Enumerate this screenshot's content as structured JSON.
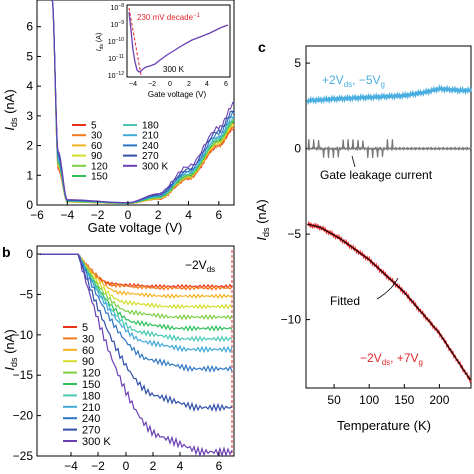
{
  "panels": {
    "a": {
      "label": "",
      "xlabel": "Gate voltage (V)",
      "ylabel_main": "I",
      "ylabel_sub": "ds",
      "ylabel_unit": " (nA)",
      "xlim": [
        -6,
        7
      ],
      "ylim": [
        0,
        6.9
      ],
      "xticks": [
        -6,
        -4,
        -2,
        0,
        2,
        4,
        6
      ],
      "yticks": [
        0,
        1,
        2,
        3,
        4,
        5,
        6
      ],
      "legend": [
        {
          "label": "5",
          "color": "#e8331b"
        },
        {
          "label": "30",
          "color": "#f07a1d"
        },
        {
          "label": "60",
          "color": "#f5b324"
        },
        {
          "label": "90",
          "color": "#d5dd28"
        },
        {
          "label": "120",
          "color": "#7fcf45"
        },
        {
          "label": "150",
          "color": "#2fbf5b"
        },
        {
          "label": "180",
          "color": "#49c9b4"
        },
        {
          "label": "210",
          "color": "#41a9d8"
        },
        {
          "label": "240",
          "color": "#2f77c4"
        },
        {
          "label": "270",
          "color": "#2f4fa8"
        },
        {
          "label": "300 K",
          "color": "#6a3fb4"
        }
      ]
    },
    "inset": {
      "ylabel_main": "I",
      "ylabel_sub": "ds",
      "ylabel_unit": " (A)",
      "xlabel": "Gate voltage (V)",
      "annotation": "230 mV decade",
      "annotation_exp": "−1",
      "temp": "300 K",
      "xticks": [
        "−4",
        "−2",
        "0",
        "2",
        "4",
        "6"
      ],
      "yticks": [
        {
          "base": "10",
          "exp": "−8"
        },
        {
          "base": "10",
          "exp": "−9"
        },
        {
          "base": "10",
          "exp": "−10"
        },
        {
          "base": "10",
          "exp": "−11"
        },
        {
          "base": "10",
          "exp": "−12"
        }
      ]
    },
    "b": {
      "label": "b",
      "annotation_main": "−2V",
      "annotation_sub": "ds",
      "ylabel_main": "I",
      "ylabel_sub": "ds",
      "ylabel_unit": " (nA)",
      "xlim": [
        -6,
        7
      ],
      "ylim": [
        -25,
        1
      ],
      "yticks": [
        0,
        -5,
        -10,
        -15,
        -20,
        -25
      ],
      "xticks_partial": [
        "-4",
        "-2",
        "0",
        "2",
        "4",
        "6"
      ],
      "legend": [
        {
          "label": "5",
          "color": "#e8331b"
        },
        {
          "label": "30",
          "color": "#f07a1d"
        },
        {
          "label": "60",
          "color": "#f5b324"
        },
        {
          "label": "90",
          "color": "#d5dd28"
        },
        {
          "label": "120",
          "color": "#7fcf45"
        },
        {
          "label": "150",
          "color": "#2fbf5b"
        },
        {
          "label": "180",
          "color": "#49c9b4"
        },
        {
          "label": "210",
          "color": "#41a9d8"
        },
        {
          "label": "240",
          "color": "#2f77c4"
        },
        {
          "label": "270",
          "color": "#2f4fa8"
        },
        {
          "label": "300 K",
          "color": "#6a3fb4"
        }
      ]
    },
    "c": {
      "label": "c",
      "xlabel": "Temperature (K)",
      "ylabel_main": "I",
      "ylabel_sub": "ds",
      "ylabel_unit": " (nA)",
      "xticks": [
        50,
        100,
        150,
        200
      ],
      "yticks": [
        5,
        0,
        -5,
        -10
      ],
      "xlim": [
        10,
        245
      ],
      "ylim": [
        -14,
        6
      ],
      "top_label": "+2V",
      "top_label_sub": "ds",
      "top_label_mid": ", −5V",
      "top_label_sub2": "g",
      "gate_label": "Gate leakage current",
      "fitted_label": "Fitted",
      "bottom_label": "−2V",
      "bottom_label_sub": "ds",
      "bottom_label_mid": ", +7V",
      "bottom_label_sub2": "g",
      "colors": {
        "top": "#4aaee0",
        "gate": "#777777",
        "bottom": "#e0262b",
        "fit": "#000000"
      }
    }
  },
  "chart_data": [
    {
      "panel": "a",
      "type": "line",
      "title": "",
      "xlabel": "Gate voltage (V)",
      "ylabel": "Ids (nA)",
      "xlim": [
        -6,
        7
      ],
      "ylim": [
        0,
        6.9
      ],
      "series_note": "11 temperature curves, each: steep drop for Vg < -4.5 V, near zero to ~1 V, then rising to ~2.5-3.5 nA at 7 V",
      "series": [
        {
          "name": "5",
          "values_at": {
            "-5": 6.9,
            "-4.6": 1.2,
            "-4": 0.1,
            "0": 0.05,
            "2": 0.2,
            "4": 0.9,
            "6": 2.0,
            "7": 2.6
          }
        },
        {
          "name": "30",
          "values_at": {
            "-5": 6.9,
            "-4.6": 1.3,
            "-4": 0.1,
            "0": 0.05,
            "2": 0.2,
            "4": 0.9,
            "6": 2.0,
            "7": 2.6
          }
        },
        {
          "name": "60",
          "values_at": {
            "-5": 6.9,
            "-4.6": 1.3,
            "-4": 0.1,
            "0": 0.05,
            "2": 0.22,
            "4": 0.95,
            "6": 2.1,
            "7": 2.7
          }
        },
        {
          "name": "90",
          "values_at": {
            "-5": 6.9,
            "-4.6": 1.3,
            "-4": 0.1,
            "0": 0.05,
            "2": 0.22,
            "4": 0.95,
            "6": 2.1,
            "7": 2.7
          }
        },
        {
          "name": "120",
          "values_at": {
            "-5": 6.9,
            "-4.6": 1.4,
            "-4": 0.12,
            "0": 0.06,
            "2": 0.25,
            "4": 1.0,
            "6": 2.15,
            "7": 2.8
          }
        },
        {
          "name": "150",
          "values_at": {
            "-5": 6.9,
            "-4.6": 1.4,
            "-4": 0.12,
            "0": 0.06,
            "2": 0.25,
            "4": 1.0,
            "6": 2.2,
            "7": 2.85
          }
        },
        {
          "name": "180",
          "values_at": {
            "-5": 6.9,
            "-4.6": 1.5,
            "-4": 0.13,
            "0": 0.06,
            "2": 0.28,
            "4": 1.05,
            "6": 2.25,
            "7": 2.9
          }
        },
        {
          "name": "210",
          "values_at": {
            "-5": 6.9,
            "-4.6": 1.5,
            "-4": 0.14,
            "0": 0.07,
            "2": 0.3,
            "4": 1.1,
            "6": 2.3,
            "7": 3.0
          }
        },
        {
          "name": "240",
          "values_at": {
            "-5": 6.9,
            "-4.6": 1.6,
            "-4": 0.15,
            "0": 0.07,
            "2": 0.32,
            "4": 1.15,
            "6": 2.4,
            "7": 3.1
          }
        },
        {
          "name": "270",
          "values_at": {
            "-5": 6.9,
            "-4.6": 1.7,
            "-4": 0.16,
            "0": 0.08,
            "2": 0.35,
            "4": 1.2,
            "6": 2.5,
            "7": 3.2
          }
        },
        {
          "name": "300 K",
          "values_at": {
            "-5": 6.9,
            "-4.6": 1.8,
            "-4": 0.18,
            "0": 0.08,
            "2": 0.38,
            "4": 1.3,
            "6": 2.6,
            "7": 3.4
          }
        }
      ]
    },
    {
      "panel": "b",
      "type": "line",
      "xlim": [
        -6,
        7
      ],
      "ylim": [
        -25,
        1
      ],
      "series": [
        {
          "name": "5",
          "plateau": -4
        },
        {
          "name": "30",
          "plateau": -4.2
        },
        {
          "name": "60",
          "plateau": -5.2
        },
        {
          "name": "90",
          "plateau": -6.5
        },
        {
          "name": "120",
          "plateau": -7.8
        },
        {
          "name": "150",
          "plateau": -9.2
        },
        {
          "name": "180",
          "plateau": -10.5
        },
        {
          "name": "210",
          "plateau": -11.8
        },
        {
          "name": "240",
          "plateau": -14.2
        },
        {
          "name": "270",
          "plateau": -19
        },
        {
          "name": "300 K",
          "plateau": -24.5
        }
      ]
    },
    {
      "panel": "c",
      "type": "line",
      "xlabel": "Temperature (K)",
      "ylabel": "Ids (nA)",
      "xlim": [
        10,
        245
      ],
      "ylim": [
        -14,
        6
      ],
      "series": [
        {
          "name": "+2Vds, -5Vg",
          "x": [
            10,
            50,
            100,
            150,
            180,
            200,
            230,
            245
          ],
          "values": [
            2.8,
            2.9,
            3.0,
            3.1,
            3.3,
            3.5,
            3.4,
            3.4
          ]
        },
        {
          "name": "Gate leakage current",
          "x": [
            10,
            245
          ],
          "values": [
            0,
            0
          ]
        },
        {
          "name": "-2Vds, +7Vg",
          "x": [
            10,
            30,
            60,
            100,
            150,
            200,
            245
          ],
          "values": [
            -4.4,
            -4.6,
            -5.3,
            -6.5,
            -8.4,
            -10.8,
            -13.6
          ]
        },
        {
          "name": "Fitted",
          "x": [
            10,
            30,
            60,
            100,
            150,
            200,
            245
          ],
          "values": [
            -4.4,
            -4.6,
            -5.3,
            -6.5,
            -8.4,
            -10.8,
            -13.6
          ]
        }
      ]
    }
  ]
}
